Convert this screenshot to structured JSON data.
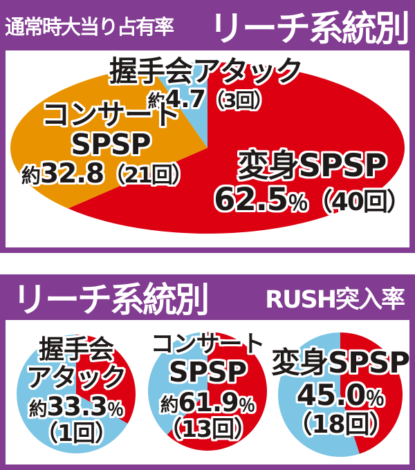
{
  "colors": {
    "purple": "#823c92",
    "red": "#dc0011",
    "orange": "#e99300",
    "blue": "#7cc5e5",
    "label_text": "#1f1a1a",
    "header_text": "#ffffff",
    "panel_bg": "#ffffff"
  },
  "section1": {
    "header": {
      "subtitle": "通常時大当り占有率",
      "title": "リーチ系統別"
    },
    "labels": {
      "attack": {
        "name": "握手会アタック",
        "prefix": "約",
        "value": "4.7",
        "paren": "（3回）"
      },
      "concert": {
        "line1": "コンサート",
        "line2": "SPSP",
        "prefix": "約",
        "value": "32.8",
        "paren": "（21回）"
      },
      "henshin": {
        "name": "変身SPSP",
        "value": "62.5",
        "unit": "％",
        "paren": "（40回）"
      }
    }
  },
  "section2": {
    "header": {
      "title": "リーチ系統別",
      "subtitle": "RUSH突入率"
    },
    "pies": [
      {
        "line1": "握手会",
        "line2": "アタック",
        "prefix": "約",
        "value": "33.3",
        "unit": "％",
        "paren": "（1回）"
      },
      {
        "line1": "コンサート",
        "line2": "SPSP",
        "prefix": "約",
        "value": "61.9",
        "unit": "％",
        "paren": "（13回）"
      },
      {
        "line1": "変身SPSP",
        "line2": "",
        "prefix": "",
        "value": "45.0",
        "unit": "％",
        "paren": "（18回）"
      }
    ]
  },
  "chart_data": [
    {
      "type": "pie",
      "shape": "horizontal-ellipse",
      "title": "通常時大当り占有率 リーチ系統別",
      "start_angle": "12-oclock",
      "direction": "clockwise",
      "slices": [
        {
          "label": "変身SPSP",
          "pct": 62.5,
          "count": 40,
          "count_unit": "回",
          "color_key": "red"
        },
        {
          "label": "コンサートSPSP",
          "pct": 32.8,
          "count": 21,
          "count_unit": "回",
          "approx": true,
          "color_key": "orange"
        },
        {
          "label": "握手会アタック",
          "pct": 4.7,
          "count": 3,
          "count_unit": "回",
          "approx": true,
          "color_key": "blue"
        }
      ]
    },
    {
      "type": "pie",
      "title": "握手会アタック RUSH突入率",
      "start_angle": "12-oclock",
      "direction": "clockwise",
      "slices": [
        {
          "label": "RUSH突入",
          "pct": 33.3,
          "count": 1,
          "count_unit": "回",
          "approx": true,
          "color_key": "red"
        },
        {
          "pct": 66.7,
          "color_key": "blue"
        }
      ]
    },
    {
      "type": "pie",
      "title": "コンサートSPSP RUSH突入率",
      "start_angle": "12-oclock",
      "direction": "clockwise",
      "slices": [
        {
          "label": "RUSH突入",
          "pct": 61.9,
          "count": 13,
          "count_unit": "回",
          "approx": true,
          "color_key": "red"
        },
        {
          "pct": 38.1,
          "color_key": "blue"
        }
      ]
    },
    {
      "type": "pie",
      "title": "変身SPSP RUSH突入率",
      "start_angle": "12-oclock",
      "direction": "clockwise",
      "slices": [
        {
          "label": "RUSH突入",
          "pct": 45.0,
          "count": 18,
          "count_unit": "回",
          "color_key": "red"
        },
        {
          "pct": 55.0,
          "color_key": "blue"
        }
      ]
    }
  ]
}
